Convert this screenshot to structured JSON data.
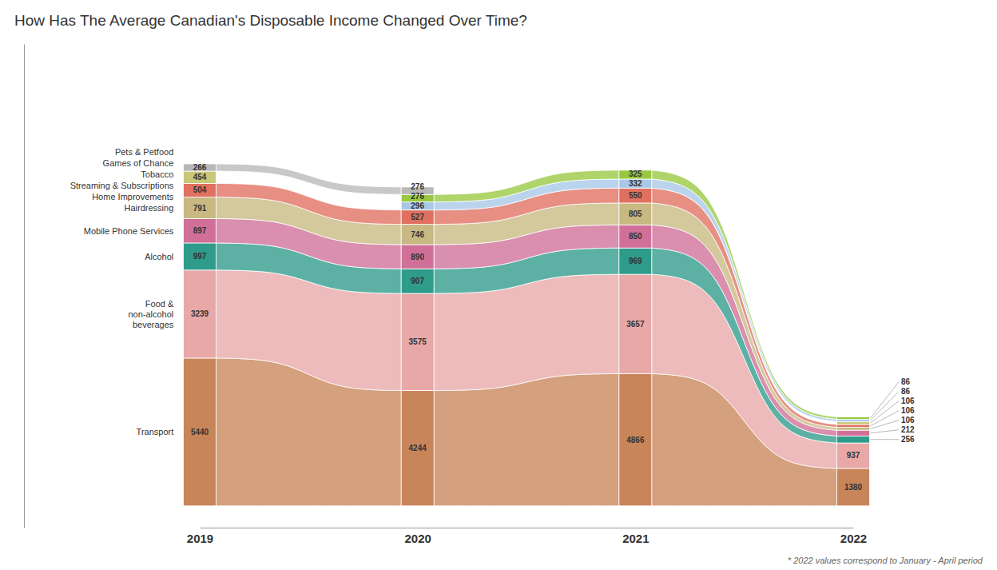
{
  "chart_data": {
    "type": "bar",
    "stacked": true,
    "title": "How Has The Average Canadian's Disposable Income Changed Over Time?",
    "annotations": [
      "* 2022 values correspond to January - April period"
    ],
    "categories": [
      "2019",
      "2020",
      "2021",
      "2022"
    ],
    "series": [
      {
        "name": "Transport",
        "color": "#C8855A",
        "values": [
          5440,
          4244,
          4866,
          1380
        ]
      },
      {
        "name": "Food &\nnon-alcohol\nbeverages",
        "color": "#E8A8A8",
        "values": [
          3239,
          3575,
          3657,
          937
        ]
      },
      {
        "name": "Alcohol",
        "color": "#2E9B8B",
        "values": [
          997,
          907,
          969,
          256
        ]
      },
      {
        "name": "Mobile Phone Services",
        "color": "#D07098",
        "values": [
          897,
          890,
          850,
          212
        ]
      },
      {
        "name": "Hairdressing",
        "color": "#C8B882",
        "values": [
          791,
          746,
          805,
          106
        ]
      },
      {
        "name": "Tobacco",
        "color": "#E07060",
        "values": [
          504,
          527,
          550,
          106
        ]
      },
      {
        "name": "Games of Chance",
        "color": "#C8C878",
        "values": [
          454,
          null,
          null,
          106
        ]
      },
      {
        "name": "Home Improvements",
        "color": "#A8C8E8",
        "values": [
          null,
          296,
          332,
          86
        ]
      },
      {
        "name": "Streaming & Subscriptions",
        "color": "#98C840",
        "values": [
          null,
          276,
          325,
          86
        ]
      },
      {
        "name": "Pets & Petfood",
        "color": "#B8B8B8",
        "values": [
          266,
          276,
          null,
          null
        ]
      }
    ],
    "ylim": [
      -800,
      17000
    ],
    "data_labels": true,
    "tick_labels": "x"
  }
}
